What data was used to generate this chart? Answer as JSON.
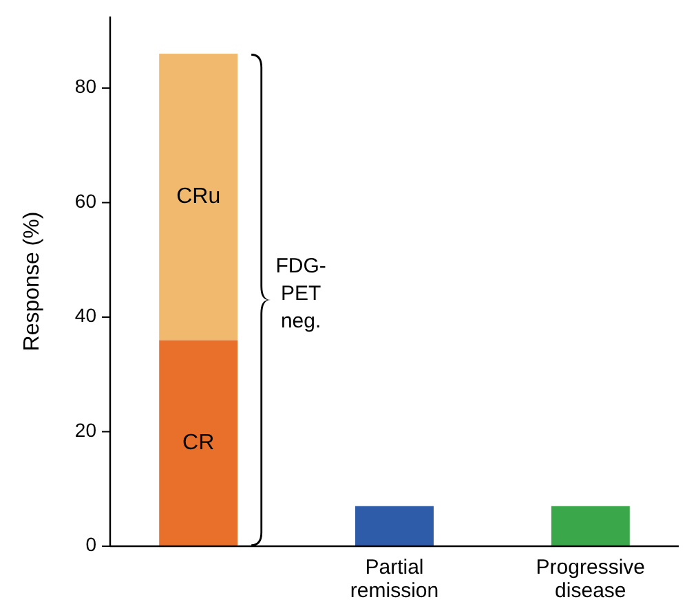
{
  "chart_data": {
    "type": "bar",
    "stacked": true,
    "ylabel": "Response (%)",
    "categories": [
      null,
      "Partial remission",
      "Progressive disease"
    ],
    "series": [
      {
        "name": "CR",
        "color": "#e9702a",
        "values": [
          36,
          null,
          null
        ]
      },
      {
        "name": "CRu",
        "color": "#f0b96e",
        "values": [
          50,
          null,
          null
        ]
      },
      {
        "colors": [
          null,
          "#2f5ca8",
          "#3aa84a"
        ],
        "values": [
          null,
          7,
          7
        ]
      }
    ],
    "ylim": [
      0,
      92.5
    ],
    "yticks": [
      0,
      20,
      40,
      60,
      80
    ],
    "grid": false,
    "annotations": [
      "FDG-PET neg."
    ]
  }
}
